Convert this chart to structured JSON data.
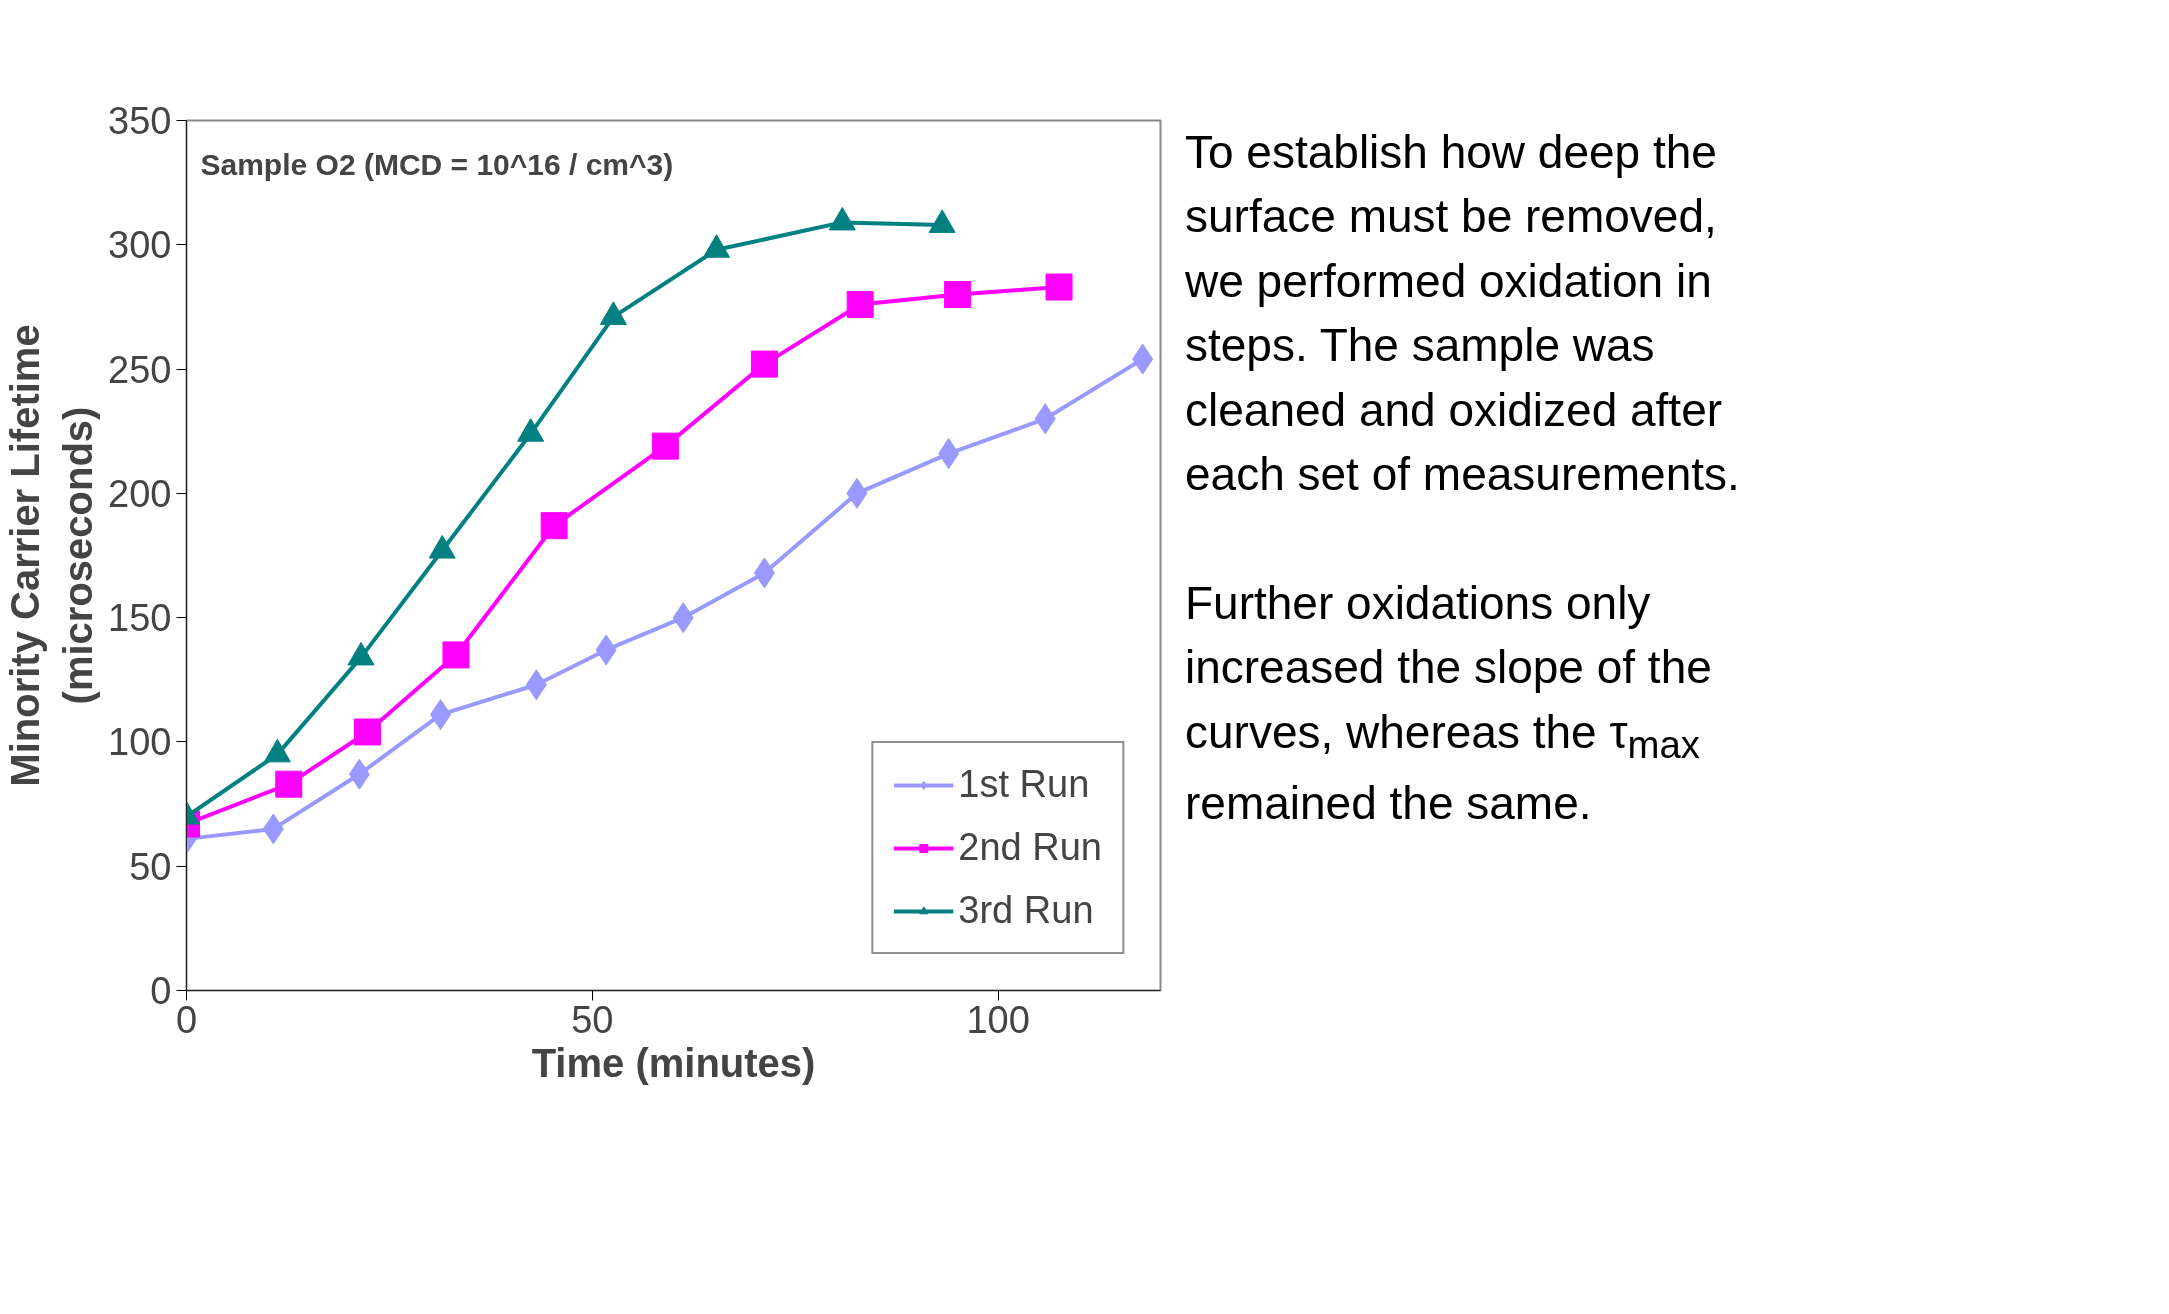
{
  "chart_data": {
    "type": "line",
    "xlabel": "Time (minutes)",
    "ylabel": "Minority Carrier Lifetime\n(microseconds)",
    "xlim": [
      0,
      120
    ],
    "xticks": [
      0,
      50,
      100
    ],
    "ylim": [
      0,
      350
    ],
    "yticks": [
      0,
      50,
      100,
      150,
      200,
      250,
      300,
      350
    ],
    "grid": false,
    "legend": "bottom right",
    "annotations": [
      "Sample O2 (MCD = 10^16 / cm^3)",
      "To establish how deep the surface must be removed, we performed oxidation in steps. The sample was cleaned and oxidized after each set of measurements.\n\nFurther oxidations only increased the slope of the curves, whereas the τ$_{max}$ remained the same."
    ],
    "series": [
      {
        "name": "1st Run",
        "color": "#9999ff",
        "marker": "diamond",
        "x": [
          0,
          10.7,
          21.3,
          31.3,
          43.1,
          51.7,
          61.2,
          71.2,
          82.6,
          93.9,
          105.8,
          117.8
        ],
        "values": [
          61,
          65,
          87,
          111,
          123,
          137,
          150,
          168,
          200,
          216,
          230,
          254
        ]
      },
      {
        "name": "2nd Run",
        "color": "#ff00ff",
        "marker": "square",
        "x": [
          0,
          12.6,
          22.3,
          33.2,
          45.3,
          59,
          71.2,
          83,
          95,
          107.5
        ],
        "values": [
          67,
          83,
          104,
          135,
          187,
          219,
          252,
          276,
          280,
          283
        ]
      },
      {
        "name": "3rd Run",
        "color": "#008080",
        "marker": "triangle",
        "x": [
          0,
          11.2,
          21.5,
          31.5,
          42.4,
          52.6,
          65.3,
          80.8,
          93.1
        ],
        "values": [
          70,
          95,
          134,
          177,
          224,
          271,
          298,
          309,
          308
        ]
      }
    ]
  }
}
